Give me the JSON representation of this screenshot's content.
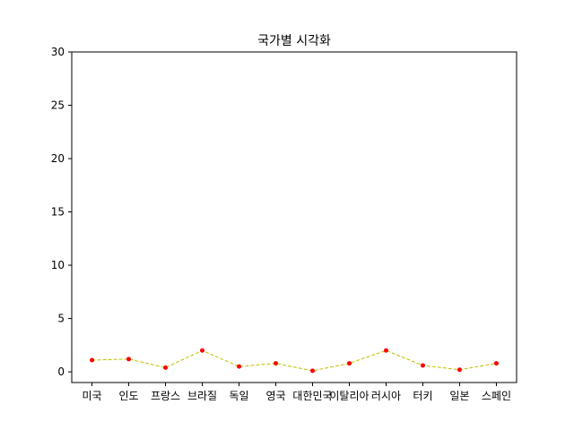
{
  "chart_data": {
    "type": "line",
    "title": "국가별 시각화",
    "xlabel": "",
    "ylabel": "",
    "categories": [
      "미국",
      "인도",
      "프랑스",
      "브라질",
      "독일",
      "영국",
      "대한민국",
      "이탈리아",
      "러시아",
      "터키",
      "일본",
      "스페인"
    ],
    "values": [
      1.1,
      1.2,
      0.4,
      2.0,
      0.5,
      0.8,
      0.1,
      0.8,
      2.0,
      0.6,
      0.2,
      0.8
    ],
    "ylim": [
      -1,
      30
    ],
    "yticks": [
      0,
      5,
      10,
      15,
      20,
      25,
      30
    ],
    "grid": false,
    "legend": "none",
    "line_color": "#bfbf00",
    "line_style": "dashed",
    "marker_color": "#ff0000"
  }
}
